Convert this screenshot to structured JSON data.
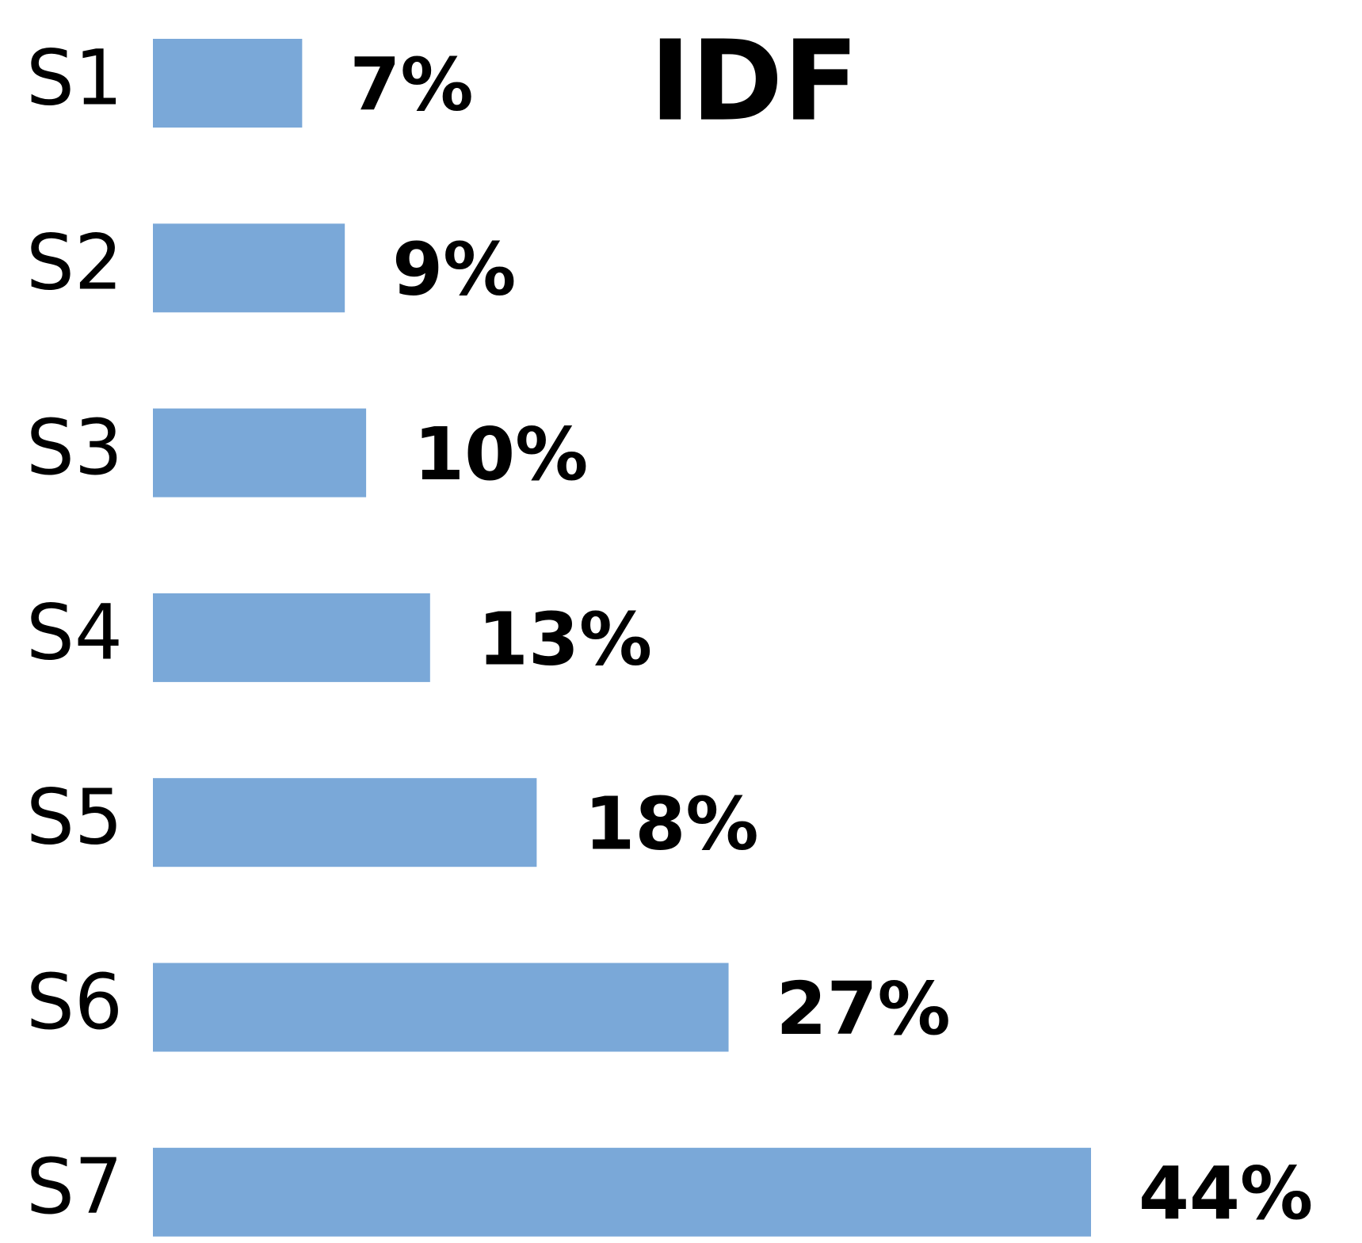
{
  "chart_data": {
    "type": "bar",
    "orientation": "horizontal",
    "title": "IDF",
    "categories": [
      "S1",
      "S2",
      "S3",
      "S4",
      "S5",
      "S6",
      "S7"
    ],
    "values": [
      7,
      9,
      10,
      13,
      18,
      27,
      44
    ],
    "value_labels": [
      "7%",
      "9%",
      "10%",
      "13%",
      "18%",
      "27%",
      "44%"
    ],
    "color": "#7aa8d8"
  }
}
